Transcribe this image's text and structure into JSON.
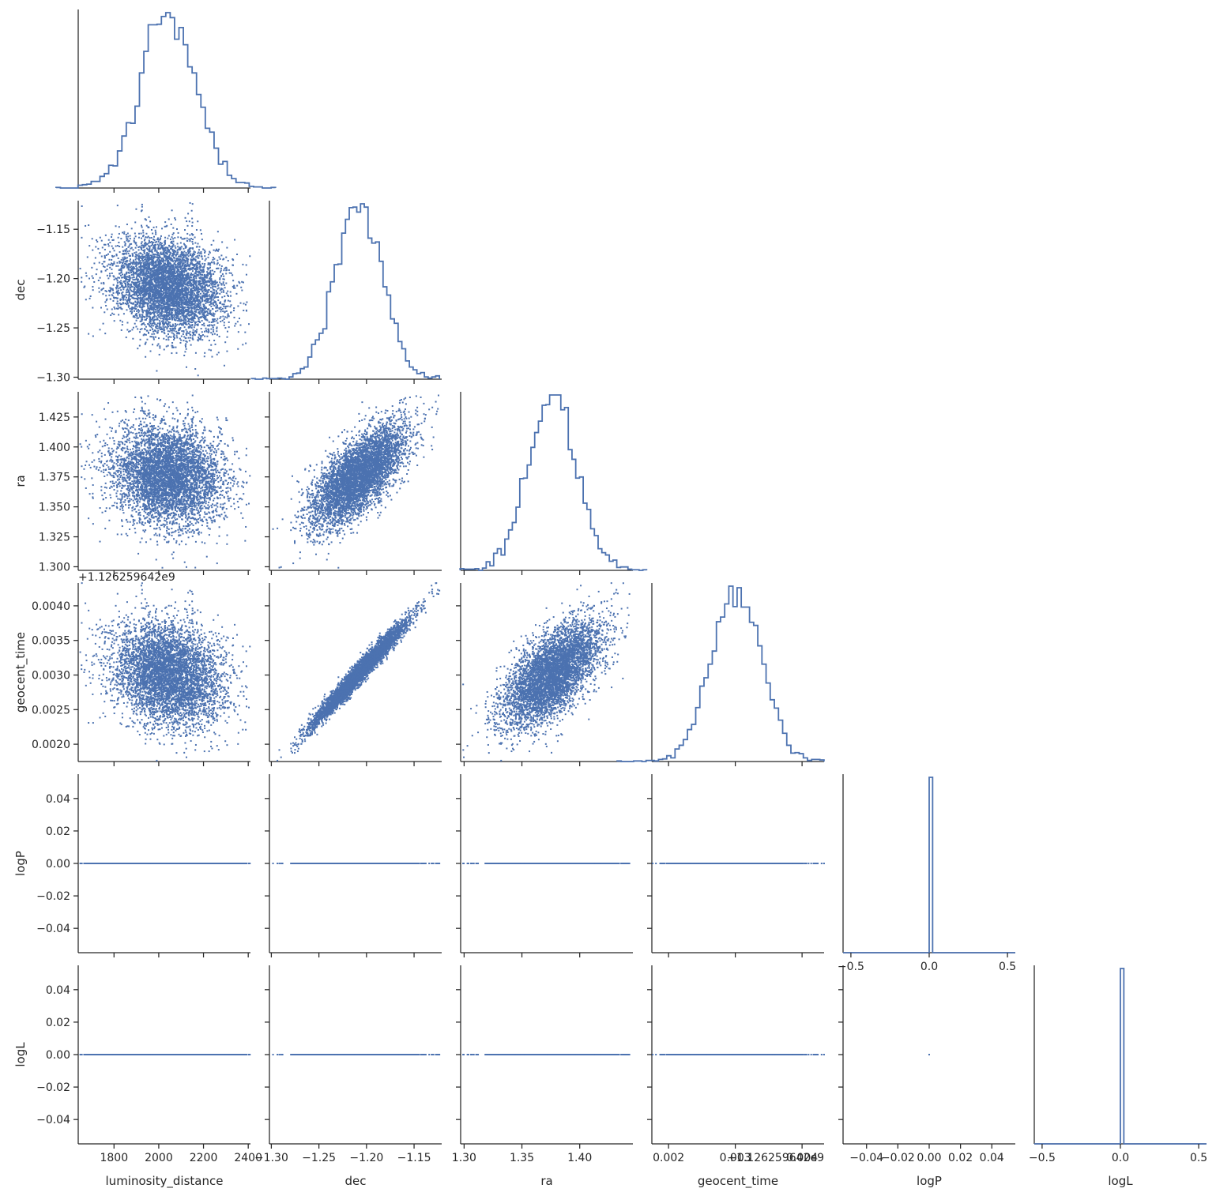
{
  "chart_data": {
    "type": "scatter",
    "title": "",
    "layout": "corner (lower-triangular pair plot)",
    "diagonal": "step histogram",
    "off_diagonal": "scatter",
    "color": "#4c72b0",
    "grid": false,
    "variables": [
      {
        "name": "luminosity_distance",
        "axis_label": "luminosity_distance",
        "lim": [
          1640,
          2410
        ],
        "ticks": [
          1800,
          2000,
          2200,
          2400
        ],
        "tick_labels": [
          "1800",
          "2000",
          "2200",
          "2400"
        ],
        "offset_text": "",
        "mean": 2040,
        "sd": 125
      },
      {
        "name": "dec",
        "axis_label": "dec",
        "lim": [
          -1.302,
          -1.121
        ],
        "ticks": [
          -1.3,
          -1.25,
          -1.2,
          -1.15
        ],
        "tick_labels": [
          "−1.30",
          "−1.25",
          "−1.20",
          "−1.15"
        ],
        "offset_text": "",
        "mean": -1.208,
        "sd": 0.025
      },
      {
        "name": "ra",
        "axis_label": "ra",
        "lim": [
          1.297,
          1.446
        ],
        "ticks": [
          1.3,
          1.35,
          1.4
        ],
        "tick_labels": [
          "1.30",
          "1.35",
          "1.40"
        ],
        "y_ticks": [
          1.3,
          1.325,
          1.35,
          1.375,
          1.4,
          1.425
        ],
        "y_tick_labels": [
          "1.300",
          "1.325",
          "1.350",
          "1.375",
          "1.400",
          "1.425"
        ],
        "offset_text": "",
        "mean": 1.376,
        "sd": 0.021
      },
      {
        "name": "geocent_time",
        "axis_label": "geocent_time",
        "lim": [
          0.00175,
          0.00433
        ],
        "ticks": [
          0.002,
          0.003,
          0.004
        ],
        "tick_labels": [
          "0.002",
          "0.003",
          "0.004"
        ],
        "y_ticks": [
          0.002,
          0.0025,
          0.003,
          0.0035,
          0.004
        ],
        "y_tick_labels": [
          "0.0020",
          "0.0025",
          "0.0030",
          "0.0035",
          "0.0040"
        ],
        "offset_text": "+1.126259642e9",
        "mean": 0.00302,
        "sd": 0.00038
      },
      {
        "name": "logP",
        "axis_label": "logP",
        "lim": [
          -0.055,
          0.055
        ],
        "ticks": [
          -0.04,
          -0.02,
          0.0,
          0.02,
          0.04
        ],
        "tick_labels": [
          "−0.04",
          "−0.02",
          "0.00",
          "0.02",
          "0.04"
        ],
        "hist_lim": [
          -0.55,
          0.55
        ],
        "hist_ticks": [
          -0.5,
          0.0,
          0.5
        ],
        "hist_tick_labels": [
          "−0.5",
          "0.0",
          "0.5"
        ],
        "constant_value": 0.0
      },
      {
        "name": "logL",
        "axis_label": "logL",
        "lim": [
          -0.055,
          0.055
        ],
        "ticks": [
          -0.04,
          -0.02,
          0.0,
          0.02,
          0.04
        ],
        "tick_labels": [
          "−0.04",
          "−0.02",
          "0.00",
          "0.02",
          "0.04"
        ],
        "hist_lim": [
          -0.55,
          0.55
        ],
        "hist_ticks": [
          -0.5,
          0.0,
          0.5
        ],
        "hist_tick_labels": [
          "−0.5",
          "0.0",
          "0.5"
        ],
        "constant_value": 0.0
      }
    ],
    "correlations": [
      {
        "x": "luminosity_distance",
        "y": "dec",
        "r": -0.2
      },
      {
        "x": "luminosity_distance",
        "y": "ra",
        "r": -0.1
      },
      {
        "x": "luminosity_distance",
        "y": "geocent_time",
        "r": -0.2
      },
      {
        "x": "dec",
        "y": "ra",
        "r": 0.7
      },
      {
        "x": "dec",
        "y": "geocent_time",
        "r": 0.98
      },
      {
        "x": "ra",
        "y": "geocent_time",
        "r": 0.65
      }
    ],
    "n_samples": 5000,
    "histogram_bins": 50
  }
}
